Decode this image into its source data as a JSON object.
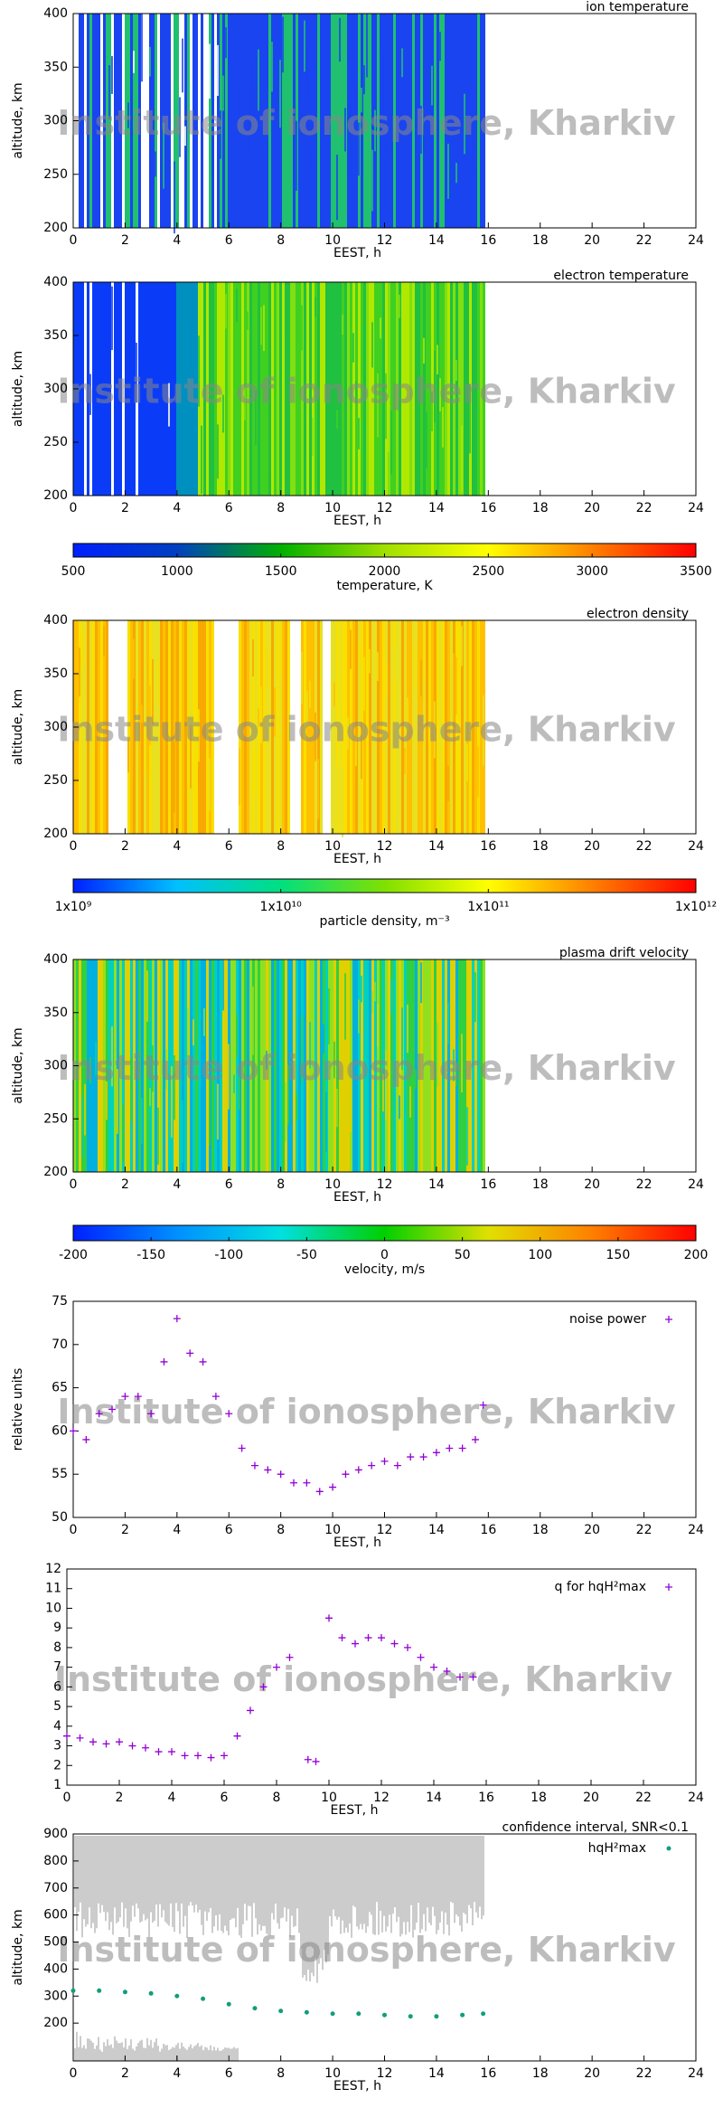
{
  "watermark": "Institute of ionosphere, Kharkiv",
  "chart_data": [
    {
      "type": "heatmap",
      "title": "ion temperature",
      "xlabel": "EEST, h",
      "ylabel": "altitude, km",
      "xlim": [
        0,
        24
      ],
      "xticks": [
        0,
        2,
        4,
        6,
        8,
        10,
        12,
        14,
        16,
        18,
        20,
        22,
        24
      ],
      "ylim": [
        200,
        400
      ],
      "yticks": [
        200,
        250,
        300,
        350,
        400
      ]
    },
    {
      "type": "heatmap",
      "title": "electron temperature",
      "xlabel": "EEST, h",
      "ylabel": "altitude, km",
      "xlim": [
        0,
        24
      ],
      "xticks": [
        0,
        2,
        4,
        6,
        8,
        10,
        12,
        14,
        16,
        18,
        20,
        22,
        24
      ],
      "ylim": [
        200,
        400
      ],
      "yticks": [
        200,
        250,
        300,
        350,
        400
      ]
    },
    {
      "type": "colorbar",
      "label": "temperature, K",
      "xlim": [
        500,
        3500
      ],
      "xticks": [
        500,
        1000,
        1500,
        2000,
        2500,
        3000,
        3500
      ],
      "colormap": [
        "#0020ff",
        "#0040c0",
        "#00b000",
        "#a0e000",
        "#ffff00",
        "#ff8000",
        "#ff0000"
      ]
    },
    {
      "type": "heatmap",
      "title": "electron density",
      "xlabel": "EEST, h",
      "ylabel": "altitude, km",
      "xlim": [
        0,
        24
      ],
      "xticks": [
        0,
        2,
        4,
        6,
        8,
        10,
        12,
        14,
        16,
        18,
        20,
        22,
        24
      ],
      "ylim": [
        200,
        400
      ],
      "yticks": [
        200,
        250,
        300,
        350,
        400
      ]
    },
    {
      "type": "colorbar",
      "label": "particle density, m⁻³",
      "xlim": [
        1000000000,
        1000000000000
      ],
      "log_scale": true,
      "xticks": [
        {
          "value": 1000000000,
          "label": "1x10⁹"
        },
        {
          "value": 10000000000,
          "label": "1x10¹⁰"
        },
        {
          "value": 100000000000,
          "label": "1x10¹¹"
        },
        {
          "value": 1000000000000,
          "label": "1x10¹²"
        }
      ],
      "colormap": [
        "#0020ff",
        "#00c0ff",
        "#00e080",
        "#80e000",
        "#ffff00",
        "#ff8000",
        "#ff0000"
      ]
    },
    {
      "type": "heatmap",
      "title": "plasma drift velocity",
      "xlabel": "EEST, h",
      "ylabel": "altitude, km",
      "xlim": [
        0,
        24
      ],
      "xticks": [
        0,
        2,
        4,
        6,
        8,
        10,
        12,
        14,
        16,
        18,
        20,
        22,
        24
      ],
      "ylim": [
        200,
        400
      ],
      "yticks": [
        200,
        250,
        300,
        350,
        400
      ]
    },
    {
      "type": "colorbar",
      "label": "velocity, m/s",
      "xlim": [
        -200,
        200
      ],
      "xticks": [
        -200,
        -150,
        -100,
        -50,
        0,
        50,
        100,
        150,
        200
      ],
      "colormap": [
        "#0020ff",
        "#0090ff",
        "#00e0e0",
        "#00d000",
        "#e0e000",
        "#ff8000",
        "#ff0000"
      ]
    },
    {
      "type": "scatter",
      "xlabel": "EEST, h",
      "ylabel": "relative units",
      "xlim": [
        0,
        24
      ],
      "xticks": [
        0,
        2,
        4,
        6,
        8,
        10,
        12,
        14,
        16,
        18,
        20,
        22,
        24
      ],
      "ylim": [
        50,
        75
      ],
      "yticks": [
        50,
        55,
        60,
        65,
        70,
        75
      ],
      "series": [
        {
          "name": "noise power",
          "color": "#9400d3",
          "marker": "plus",
          "x": [
            0,
            0.5,
            1,
            1.5,
            2,
            2.5,
            3,
            3.5,
            4,
            4.5,
            5,
            5.5,
            6,
            6.5,
            7,
            7.5,
            8,
            8.5,
            9,
            9.5,
            10,
            10.5,
            11,
            11.5,
            12,
            12.5,
            13,
            13.5,
            14,
            14.5,
            15,
            15.5,
            15.8
          ],
          "values": [
            60,
            59,
            62,
            62.5,
            64,
            64,
            62,
            68,
            73,
            69,
            68,
            64,
            62,
            58,
            56,
            55.5,
            55,
            54,
            54,
            53,
            53.5,
            55,
            55.5,
            56,
            56.5,
            56,
            57,
            57,
            57.5,
            58,
            58,
            59,
            63
          ]
        }
      ]
    },
    {
      "type": "scatter",
      "xlabel": "EEST, h",
      "xlim": [
        0,
        24
      ],
      "xticks": [
        0,
        2,
        4,
        6,
        8,
        10,
        12,
        14,
        16,
        18,
        20,
        22,
        24
      ],
      "ylim": [
        1,
        12
      ],
      "yticks": [
        1,
        2,
        3,
        4,
        5,
        6,
        7,
        8,
        9,
        10,
        11,
        12
      ],
      "series": [
        {
          "name": "q for hqH²max",
          "color": "#9400d3",
          "marker": "plus",
          "x": [
            0,
            0.5,
            1,
            1.5,
            2,
            2.5,
            3,
            3.5,
            4,
            4.5,
            5,
            5.5,
            6,
            6.5,
            7,
            7.5,
            8,
            8.5,
            9.2,
            9.5,
            10,
            10.5,
            11,
            11.5,
            12,
            12.5,
            13,
            13.5,
            14,
            14.5,
            15,
            15.5
          ],
          "values": [
            3.5,
            3.4,
            3.2,
            3.1,
            3.2,
            3,
            2.9,
            2.7,
            2.7,
            2.5,
            2.5,
            2.4,
            2.5,
            3.5,
            4.8,
            6,
            7,
            7.5,
            2.3,
            2.2,
            9.5,
            8.5,
            8.2,
            8.5,
            8.5,
            8.2,
            8,
            7.5,
            7,
            6.8,
            6.5,
            6.5
          ]
        }
      ]
    },
    {
      "type": "scatter",
      "title": "confidence interval, SNR<0.1",
      "xlabel": "EEST, h",
      "ylabel": "altitude, km",
      "xlim": [
        0,
        24
      ],
      "xticks": [
        0,
        2,
        4,
        6,
        8,
        10,
        12,
        14,
        16,
        18,
        20,
        22,
        24
      ],
      "ylim": [
        60,
        900
      ],
      "yticks": [
        200,
        300,
        400,
        500,
        600,
        700,
        800,
        900
      ],
      "series": [
        {
          "name": "hqH²max",
          "color": "#129e7a",
          "marker": "dot",
          "x": [
            0,
            1,
            2,
            3,
            4,
            5,
            6,
            7,
            8,
            9,
            10,
            11,
            12,
            13,
            14,
            15,
            15.8
          ],
          "values": [
            320,
            320,
            315,
            310,
            300,
            290,
            270,
            255,
            245,
            240,
            235,
            235,
            230,
            225,
            225,
            230,
            235
          ]
        }
      ]
    }
  ]
}
